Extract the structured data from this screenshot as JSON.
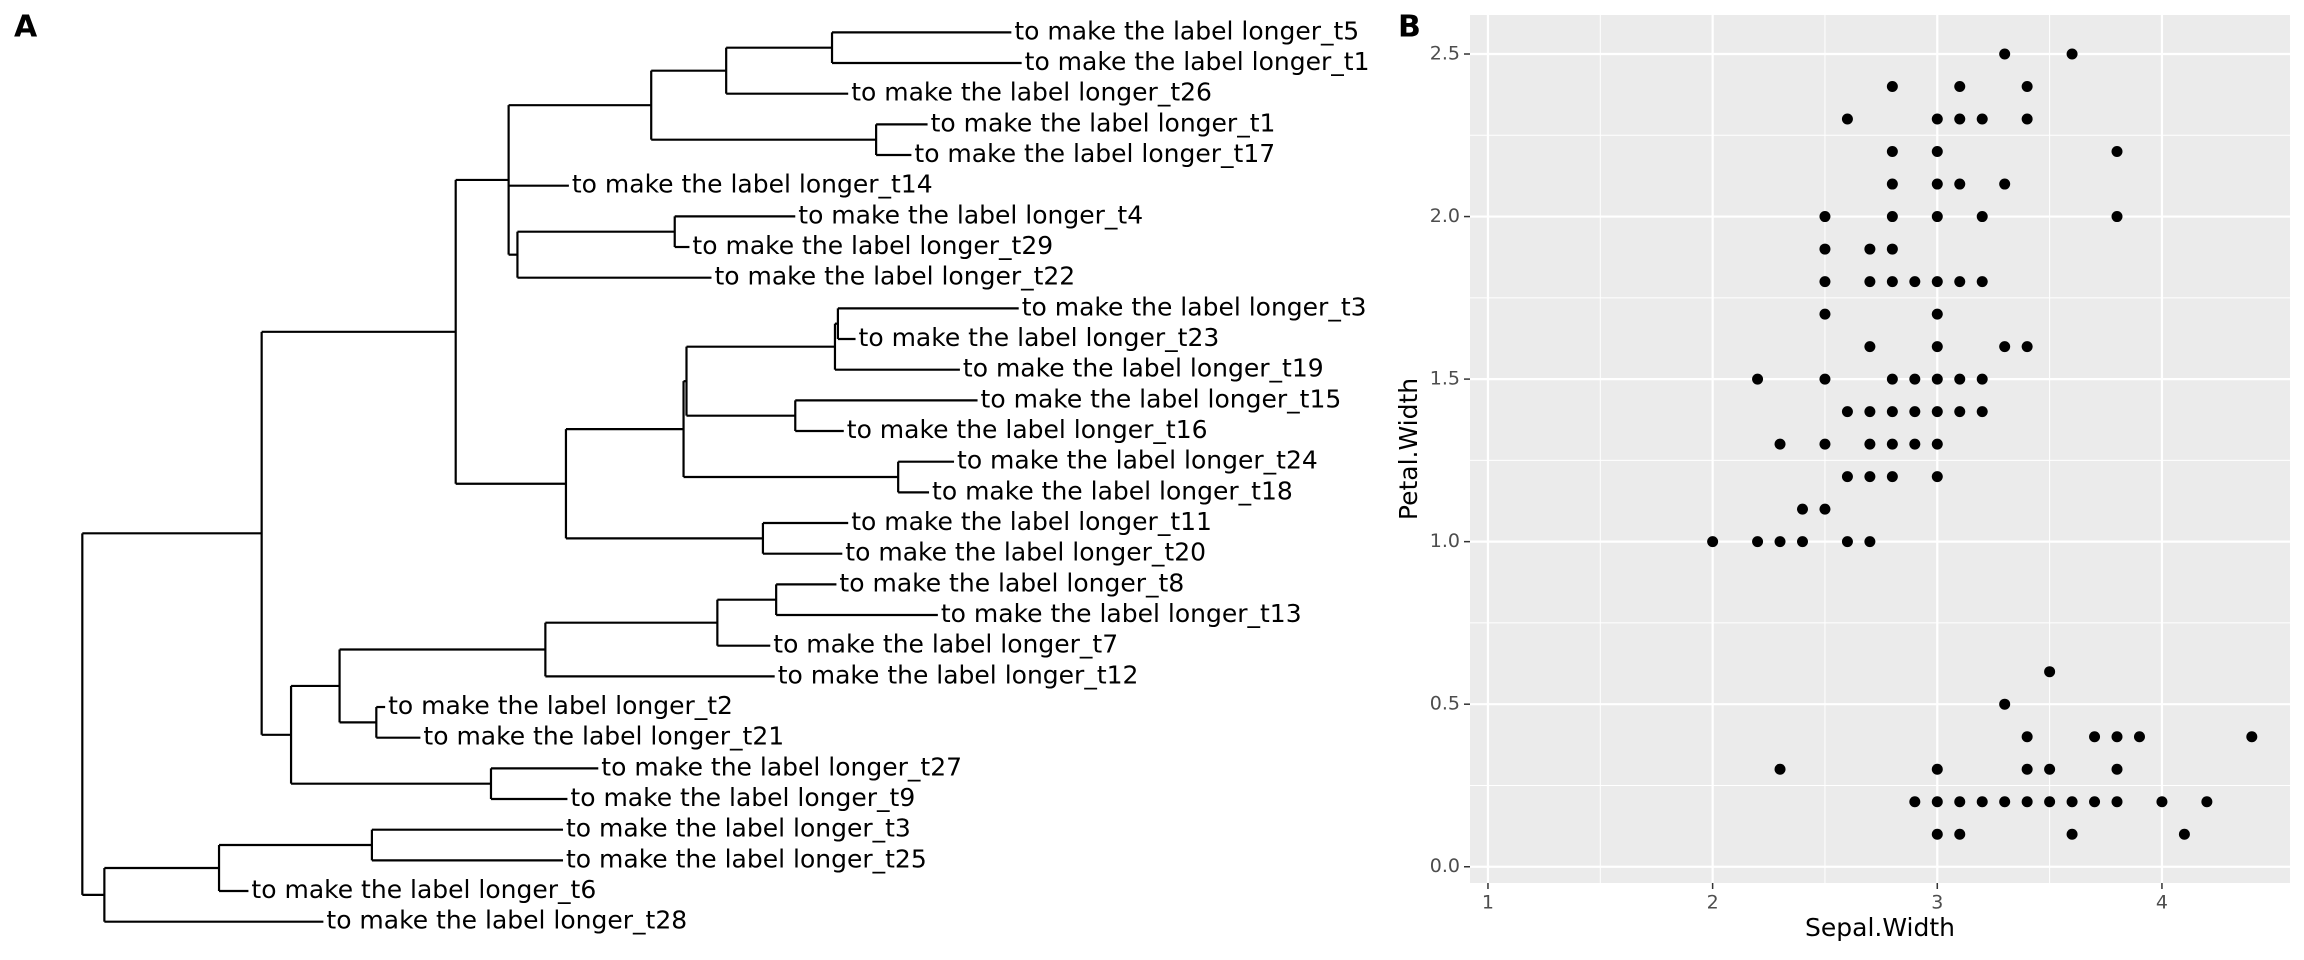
{
  "chart_data": [
    {
      "type": "tree",
      "panel_label": "A",
      "labels": [
        "to make the label longer_t5",
        "to make the label longer_t1",
        "to make the label longer_t26",
        "to make the label longer_t1",
        "to make the label longer_t17",
        "to make the label longer_t14",
        "to make the label longer_t4",
        "to make the label longer_t29",
        "to make the label longer_t22",
        "to make the label longer_t3",
        "to make the label longer_t23",
        "to make the label longer_t19",
        "to make the label longer_t15",
        "to make the label longer_t16",
        "to make the label longer_t24",
        "to make the label longer_t18",
        "to make the label longer_t11",
        "to make the label longer_t20",
        "to make the label longer_t8",
        "to make the label longer_t13",
        "to make the label longer_t7",
        "to make the label longer_t12",
        "to make the label longer_t2",
        "to make the label longer_t21",
        "to make the label longer_t27",
        "to make the label longer_t9",
        "to make the label longer_t3",
        "to make the label longer_t25",
        "to make the label longer_t6",
        "to make the label longer_t28"
      ]
    },
    {
      "type": "scatter",
      "panel_label": "B",
      "x_label": "Sepal.Width",
      "y_label": "Petal.Width",
      "color": "#000000",
      "grid": true,
      "x": [
        3.3,
        3.6,
        2.8,
        3.1,
        3.4,
        2.6,
        3.0,
        3.1,
        3.2,
        3.4,
        2.8,
        3.0,
        3.8,
        2.8,
        3.0,
        3.1,
        3.3,
        2.5,
        2.8,
        3.0,
        3.2,
        3.8,
        2.5,
        2.7,
        2.8,
        2.5,
        2.7,
        2.8,
        2.9,
        3.0,
        3.1,
        3.2,
        2.5,
        3.0,
        2.7,
        3.0,
        3.3,
        3.4,
        2.2,
        2.5,
        2.8,
        2.9,
        3.0,
        3.1,
        3.2,
        2.6,
        2.7,
        2.8,
        2.9,
        3.0,
        3.1,
        3.2,
        2.3,
        2.5,
        2.7,
        2.8,
        2.9,
        3.0,
        2.6,
        2.7,
        2.8,
        3.0,
        2.4,
        2.5,
        2.0,
        2.2,
        2.3,
        2.4,
        2.6,
        2.7,
        3.5,
        3.3,
        3.4,
        3.7,
        3.8,
        3.9,
        4.4,
        2.3,
        3.0,
        3.4,
        3.5,
        3.8,
        2.9,
        3.0,
        3.1,
        3.2,
        3.3,
        3.4,
        3.5,
        3.6,
        3.7,
        3.8,
        4.0,
        4.2,
        3.0,
        3.1,
        3.6,
        4.1
      ],
      "values": [
        2.5,
        2.5,
        2.4,
        2.4,
        2.4,
        2.3,
        2.3,
        2.3,
        2.3,
        2.3,
        2.2,
        2.2,
        2.2,
        2.1,
        2.1,
        2.1,
        2.1,
        2.0,
        2.0,
        2.0,
        2.0,
        2.0,
        1.9,
        1.9,
        1.9,
        1.8,
        1.8,
        1.8,
        1.8,
        1.8,
        1.8,
        1.8,
        1.7,
        1.7,
        1.6,
        1.6,
        1.6,
        1.6,
        1.5,
        1.5,
        1.5,
        1.5,
        1.5,
        1.5,
        1.5,
        1.4,
        1.4,
        1.4,
        1.4,
        1.4,
        1.4,
        1.4,
        1.3,
        1.3,
        1.3,
        1.3,
        1.3,
        1.3,
        1.2,
        1.2,
        1.2,
        1.2,
        1.1,
        1.1,
        1.0,
        1.0,
        1.0,
        1.0,
        1.0,
        1.0,
        0.6,
        0.5,
        0.4,
        0.4,
        0.4,
        0.4,
        0.4,
        0.3,
        0.3,
        0.3,
        0.3,
        0.3,
        0.2,
        0.2,
        0.2,
        0.2,
        0.2,
        0.2,
        0.2,
        0.2,
        0.2,
        0.2,
        0.2,
        0.2,
        0.1,
        0.1,
        0.1,
        0.1
      ],
      "xlim": [
        0.92,
        4.57
      ],
      "ylim": [
        -0.05,
        2.62
      ],
      "xticks": [
        1,
        2,
        3,
        4
      ],
      "yticks": [
        {
          "value": 0,
          "label": "0.0"
        },
        0.5,
        {
          "value": 1,
          "label": "1.0"
        },
        1.5,
        {
          "value": 2,
          "label": "2.0"
        },
        2.5
      ]
    }
  ]
}
